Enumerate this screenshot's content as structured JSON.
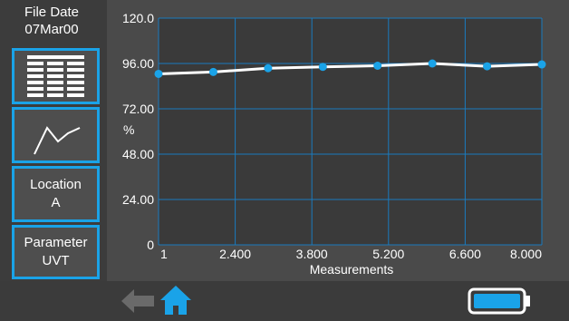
{
  "file_date": {
    "label": "File Date",
    "value": "07Mar00"
  },
  "sidebar": {
    "table_icon": "table-view-icon",
    "graph_icon": "graph-view-icon",
    "location": {
      "label": "Location",
      "value": "A"
    },
    "parameter": {
      "label": "Parameter",
      "value": "UVT"
    }
  },
  "chart_data": {
    "type": "line",
    "ylabel": "%",
    "xlabel": "Measurements",
    "y_ticks": [
      "120.0",
      "96.00",
      "72.00",
      "48.00",
      "24.00",
      "0"
    ],
    "x_ticks": [
      "1",
      "2.400",
      "3.800",
      "5.200",
      "6.600",
      "8.000"
    ],
    "xlim": [
      1,
      8
    ],
    "ylim": [
      0,
      120
    ],
    "grid": true,
    "series": [
      {
        "x": [
          1,
          2,
          3,
          4,
          5,
          6,
          7,
          8
        ],
        "values": [
          90.5,
          91.5,
          93.5,
          94.2,
          94.8,
          96.0,
          94.5,
          95.5
        ]
      }
    ],
    "colors": {
      "plot_bg": "#3a3a3a",
      "grid": "#1a7bbf",
      "line": "#ffffff",
      "marker": "#1aa3e8"
    }
  },
  "bottom": {
    "back_icon": "back-arrow-icon",
    "home_icon": "home-icon",
    "battery_icon": "battery-icon"
  },
  "colors": {
    "accent": "#1aa3e8",
    "background": "#4a4a4a"
  }
}
